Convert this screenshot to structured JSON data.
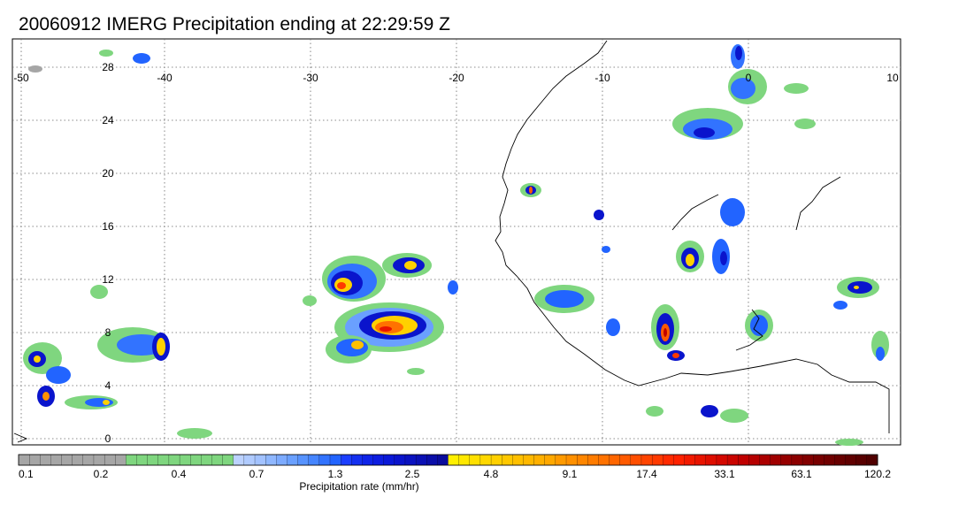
{
  "title": "20060912 IMERG Precipitation ending at 22:29:59 Z",
  "map": {
    "lon_labels": [
      "-50",
      "-40",
      "-30",
      "-20",
      "-10",
      "0",
      "10"
    ],
    "lat_labels": [
      "28",
      "24",
      "20",
      "16",
      "12",
      "8",
      "4",
      "0"
    ],
    "lon_range": [
      -50,
      10
    ],
    "lat_range": [
      -1,
      30
    ],
    "grid": "dotted"
  },
  "colorbar": {
    "label": "Precipitation rate (mm/hr)",
    "tick_labels": [
      "0.1",
      "0.2",
      "0.4",
      "0.7",
      "1.3",
      "2.5",
      "4.8",
      "9.1",
      "17.4",
      "33.1",
      "63.1",
      "120.2"
    ],
    "colors": [
      "#a6a6a6",
      "#a6a6a6",
      "#a6a6a6",
      "#a6a6a6",
      "#a6a6a6",
      "#a6a6a6",
      "#a6a6a6",
      "#a6a6a6",
      "#a6a6a6",
      "#a6a6a6",
      "#7fd67f",
      "#7fd67f",
      "#7fd67f",
      "#7fd67f",
      "#7fd67f",
      "#7fd67f",
      "#7fd67f",
      "#7fd67f",
      "#7fd67f",
      "#7fd67f",
      "#bcd2ff",
      "#b0cbff",
      "#a2c2ff",
      "#8fb7ff",
      "#7dabff",
      "#6aa0ff",
      "#5793ff",
      "#4585ff",
      "#3273ff",
      "#2264ff",
      "#1b3eff",
      "#1430f0",
      "#0f24e8",
      "#0d1de0",
      "#0a18d8",
      "#0a14cc",
      "#0a12c0",
      "#0a10b4",
      "#0a0ea8",
      "#0a0c9c",
      "#fff000",
      "#ffe800",
      "#ffe000",
      "#ffd800",
      "#ffd000",
      "#ffc800",
      "#ffc000",
      "#ffb800",
      "#ffb000",
      "#ffa800",
      "#ff9a00",
      "#ff9000",
      "#ff8600",
      "#ff7c00",
      "#ff7200",
      "#ff6600",
      "#ff5a00",
      "#ff4e00",
      "#ff4400",
      "#ff3a00",
      "#ff2a00",
      "#ff2200",
      "#f21a00",
      "#e81400",
      "#de0e00",
      "#d40800",
      "#ca0400",
      "#c00000",
      "#b60000",
      "#ac0000",
      "#a00000",
      "#960000",
      "#8c0000",
      "#820000",
      "#780000",
      "#700000",
      "#680000",
      "#600000",
      "#580000",
      "#500000"
    ]
  }
}
